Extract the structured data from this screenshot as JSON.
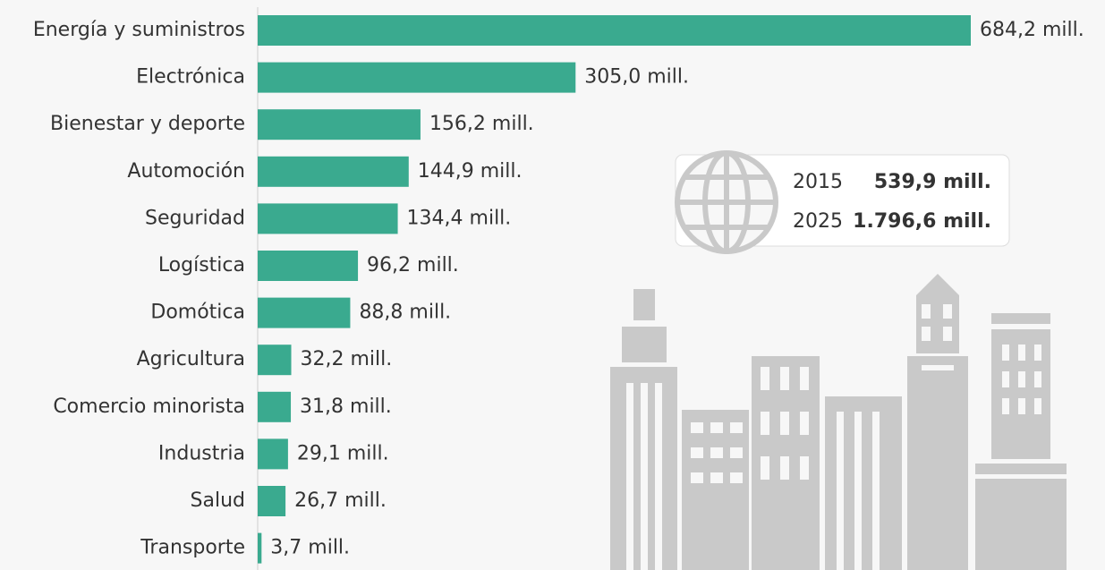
{
  "chart_data": {
    "type": "barh",
    "categories": [
      "Energía y suministros",
      "Electrónica",
      "Bienestar y deporte",
      "Automoción",
      "Seguridad",
      "Logística",
      "Domótica",
      "Agricultura",
      "Comercio minorista",
      "Industria",
      "Salud",
      "Transporte"
    ],
    "values": [
      684.2,
      305.0,
      156.2,
      144.9,
      134.4,
      96.2,
      88.8,
      32.2,
      31.8,
      29.1,
      26.7,
      3.7
    ],
    "value_labels": [
      "684,2 mill.",
      "305,0 mill.",
      "156,2 mill.",
      "144,9 mill.",
      "134,4 mill.",
      "96,2 mill.",
      "88,8 mill.",
      "32,2 mill.",
      "31,8 mill.",
      "29,1 mill.",
      "26,7 mill.",
      "3,7 mill."
    ],
    "color": "#3aaa8f",
    "annotations": [
      {
        "year": "2015",
        "label": "539,9 mill."
      },
      {
        "year": "2025",
        "label": "1.796,6 mill."
      }
    ]
  }
}
